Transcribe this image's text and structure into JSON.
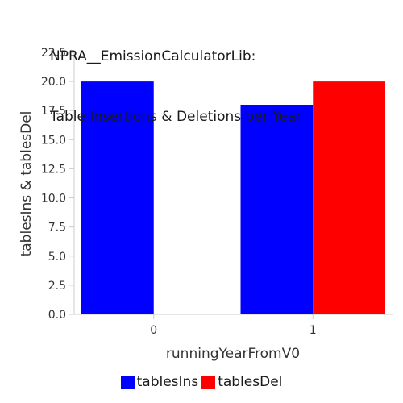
{
  "chart_data": {
    "type": "bar",
    "title_lines": [
      "NPRA__EmissionCalculatorLib:",
      "Table Insertions & Deletions per Year"
    ],
    "xlabel": "runningYearFromV0",
    "ylabel": "tablesIns & tablesDel",
    "categories": [
      "0",
      "1"
    ],
    "series": [
      {
        "name": "tablesIns",
        "color": "#0000ff",
        "values": [
          20,
          18
        ]
      },
      {
        "name": "tablesDel",
        "color": "#ff0000",
        "values": [
          0,
          20
        ]
      }
    ],
    "ylim": [
      0,
      22.5
    ],
    "yticks": [
      "0.0",
      "2.5",
      "5.0",
      "7.5",
      "10.0",
      "12.5",
      "15.0",
      "17.5",
      "20.0",
      "22.5"
    ],
    "grid": false,
    "legend_position": "bottom"
  }
}
